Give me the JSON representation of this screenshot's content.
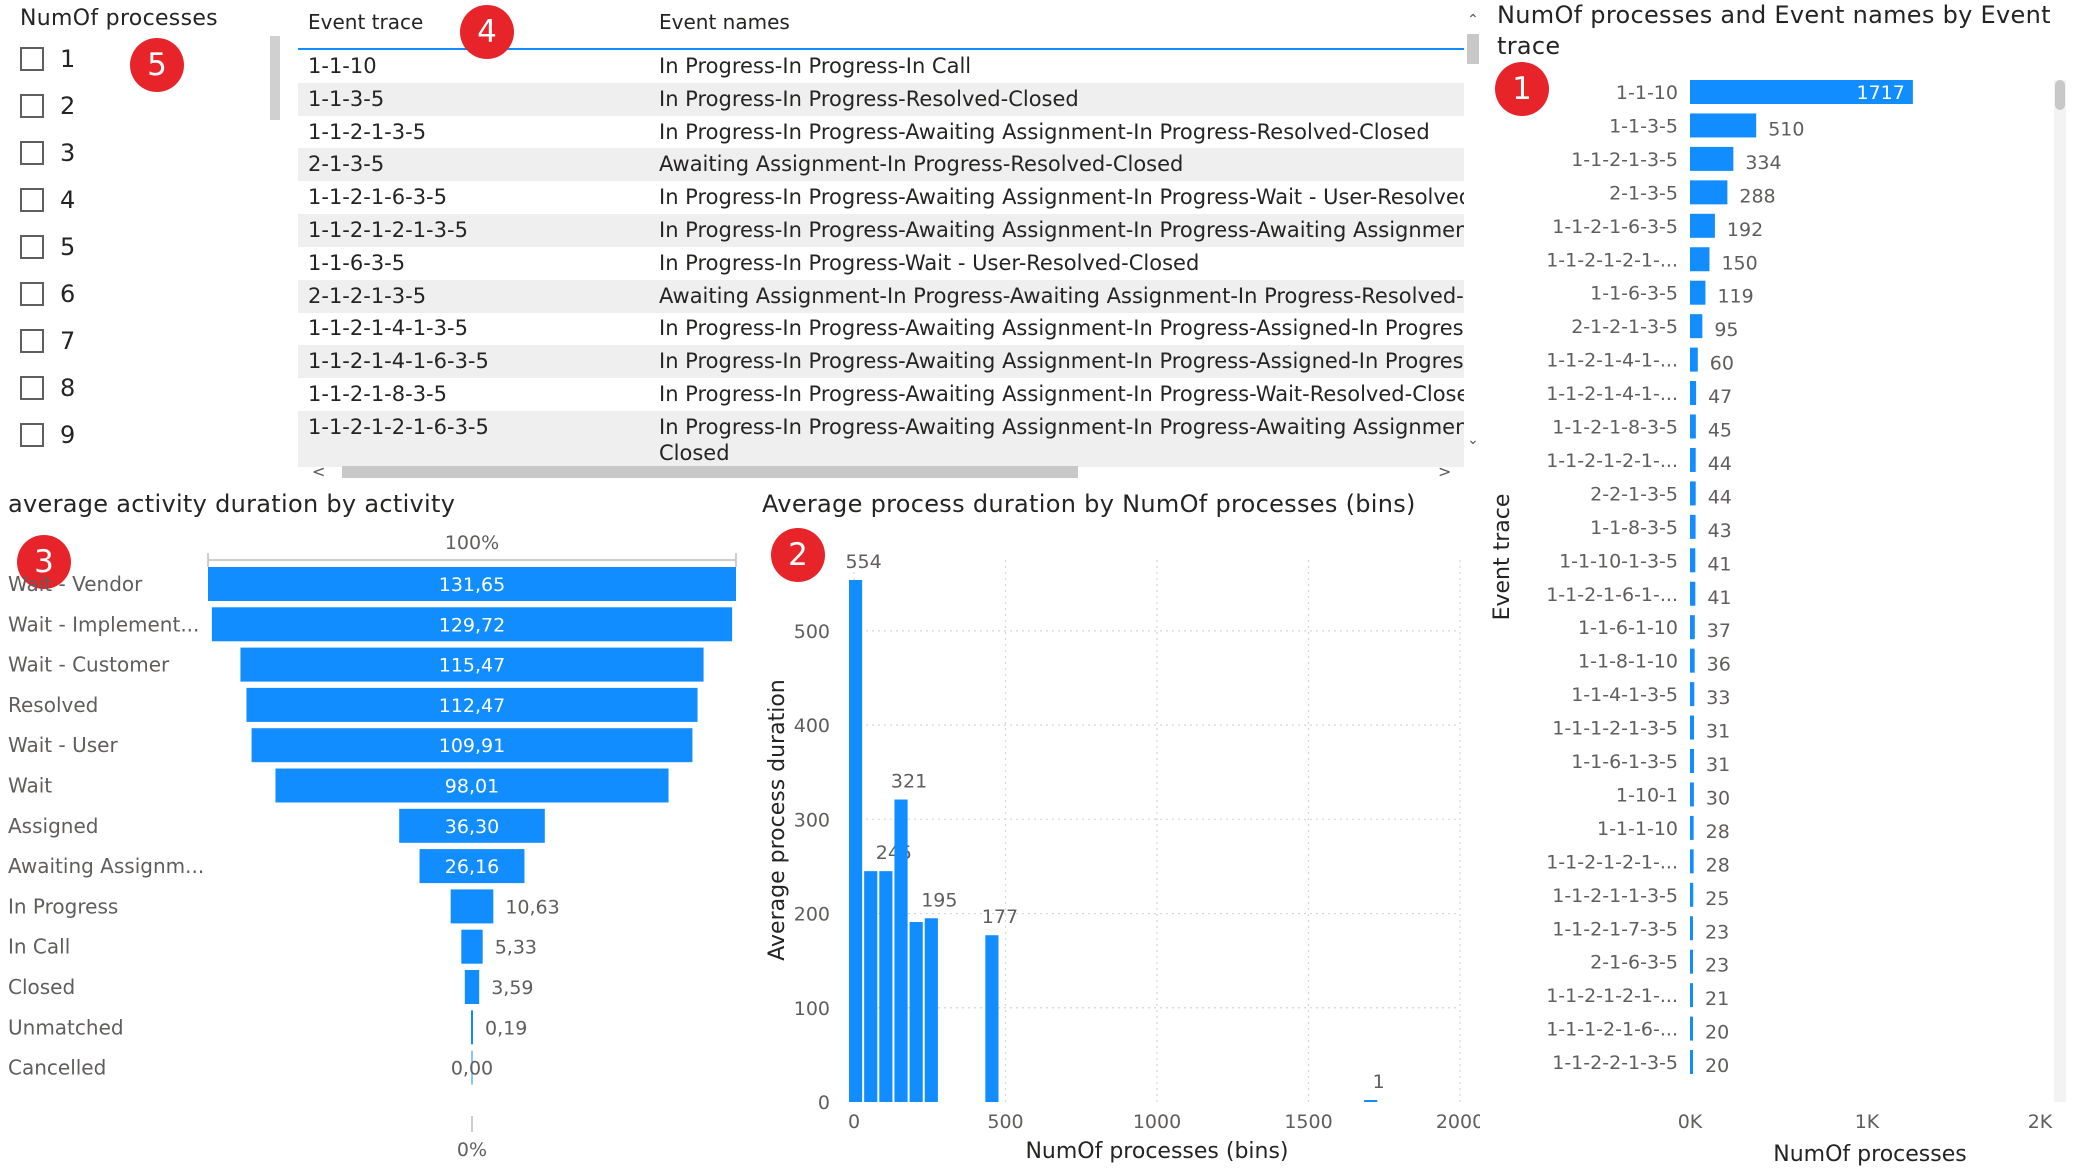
{
  "slicer": {
    "title": "NumOf processes",
    "items": [
      "1",
      "2",
      "3",
      "4",
      "5",
      "6",
      "7",
      "8",
      "9"
    ]
  },
  "badges": [
    "1",
    "2",
    "3",
    "4",
    "5"
  ],
  "table": {
    "headers": [
      "Event trace",
      "Event names"
    ],
    "rows": [
      {
        "trace": "1-1-10",
        "names": "In Progress-In Progress-In Call"
      },
      {
        "trace": "1-1-3-5",
        "names": "In Progress-In Progress-Resolved-Closed"
      },
      {
        "trace": "1-1-2-1-3-5",
        "names": "In Progress-In Progress-Awaiting Assignment-In Progress-Resolved-Closed"
      },
      {
        "trace": "2-1-3-5",
        "names": "Awaiting Assignment-In Progress-Resolved-Closed"
      },
      {
        "trace": "1-1-2-1-6-3-5",
        "names": "In Progress-In Progress-Awaiting Assignment-In Progress-Wait - User-Resolved-Clos"
      },
      {
        "trace": "1-1-2-1-2-1-3-5",
        "names": "In Progress-In Progress-Awaiting Assignment-In Progress-Awaiting Assignment-In Pr"
      },
      {
        "trace": "1-1-6-3-5",
        "names": "In Progress-In Progress-Wait - User-Resolved-Closed"
      },
      {
        "trace": "2-1-2-1-3-5",
        "names": "Awaiting Assignment-In Progress-Awaiting Assignment-In Progress-Resolved-Closec"
      },
      {
        "trace": "1-1-2-1-4-1-3-5",
        "names": "In Progress-In Progress-Awaiting Assignment-In Progress-Assigned-In Progress-Reso"
      },
      {
        "trace": "1-1-2-1-4-1-6-3-5",
        "names": "In Progress-In Progress-Awaiting Assignment-In Progress-Assigned-In Progress-Wai"
      },
      {
        "trace": "1-1-2-1-8-3-5",
        "names": "In Progress-In Progress-Awaiting Assignment-In Progress-Wait-Resolved-Closed"
      },
      {
        "trace": "1-1-2-1-2-1-6-3-5",
        "names": "In Progress-In Progress-Awaiting Assignment-In Progress-Awaiting Assignment-In Pr"
      }
    ],
    "last_row_wrap": "Closed"
  },
  "chart_data": [
    {
      "type": "bar",
      "orientation": "horizontal",
      "title": "NumOf processes and Event names by Event trace",
      "xlabel": "NumOf processes",
      "ylabel": "Event trace",
      "xlim": [
        0,
        2000
      ],
      "x_ticks": [
        "0K",
        "1K",
        "2K"
      ],
      "color": "#118dff",
      "categories": [
        "1-1-10",
        "1-1-3-5",
        "1-1-2-1-3-5",
        "2-1-3-5",
        "1-1-2-1-6-3-5",
        "1-1-2-1-2-1-...",
        "1-1-6-3-5",
        "2-1-2-1-3-5",
        "1-1-2-1-4-1-...",
        "1-1-2-1-4-1-...",
        "1-1-2-1-8-3-5",
        "1-1-2-1-2-1-...",
        "2-2-1-3-5",
        "1-1-8-3-5",
        "1-1-10-1-3-5",
        "1-1-2-1-6-1-...",
        "1-1-6-1-10",
        "1-1-8-1-10",
        "1-1-4-1-3-5",
        "1-1-1-2-1-3-5",
        "1-1-6-1-3-5",
        "1-10-1",
        "1-1-1-10",
        "1-1-2-1-2-1-...",
        "1-1-2-1-1-3-5",
        "1-1-2-1-7-3-5",
        "2-1-6-3-5",
        "1-1-2-1-2-1-...",
        "1-1-1-2-1-6-...",
        "1-1-2-2-1-3-5"
      ],
      "values": [
        1717,
        510,
        334,
        288,
        192,
        150,
        119,
        95,
        60,
        47,
        45,
        44,
        44,
        43,
        41,
        41,
        37,
        36,
        33,
        31,
        31,
        30,
        28,
        28,
        25,
        23,
        23,
        21,
        20,
        20
      ]
    },
    {
      "type": "bar",
      "title": "Average process duration by NumOf processes (bins)",
      "xlabel": "NumOf processes (bins)",
      "ylabel": "Average process duration",
      "xlim": [
        0,
        2000
      ],
      "ylim": [
        0,
        554
      ],
      "x_ticks": [
        0,
        500,
        1000,
        1500,
        2000
      ],
      "y_ticks": [
        0,
        100,
        200,
        300,
        400,
        500
      ],
      "color": "#118dff",
      "bin_width": 50,
      "bins": [
        {
          "x": 0,
          "value": 554,
          "label": "554"
        },
        {
          "x": 50,
          "value": 245,
          "label": ""
        },
        {
          "x": 100,
          "value": 245,
          "label": "245"
        },
        {
          "x": 150,
          "value": 321,
          "label": "321"
        },
        {
          "x": 200,
          "value": 191,
          "label": ""
        },
        {
          "x": 250,
          "value": 195,
          "label": "195"
        },
        {
          "x": 450,
          "value": 177,
          "label": "177"
        },
        {
          "x": 1700,
          "value": 1,
          "label": "1"
        }
      ]
    },
    {
      "type": "funnel",
      "title": "average activity duration by activity",
      "top_label": "100%",
      "bottom_label": "0%",
      "color": "#118dff",
      "categories": [
        "Wait - Vendor",
        "Wait - Implement...",
        "Wait - Customer",
        "Resolved",
        "Wait - User",
        "Wait",
        "Assigned",
        "Awaiting Assignm...",
        "In Progress",
        "In Call",
        "Closed",
        "Unmatched",
        "Cancelled"
      ],
      "values": [
        131.65,
        129.72,
        115.47,
        112.47,
        109.91,
        98.01,
        36.3,
        26.16,
        10.63,
        5.33,
        3.59,
        0.19,
        0.0
      ],
      "value_labels": [
        "131,65",
        "129,72",
        "115,47",
        "112,47",
        "109,91",
        "98,01",
        "36,30",
        "26,16",
        "10,63",
        "5,33",
        "3,59",
        "0,19",
        "0,00"
      ]
    }
  ]
}
